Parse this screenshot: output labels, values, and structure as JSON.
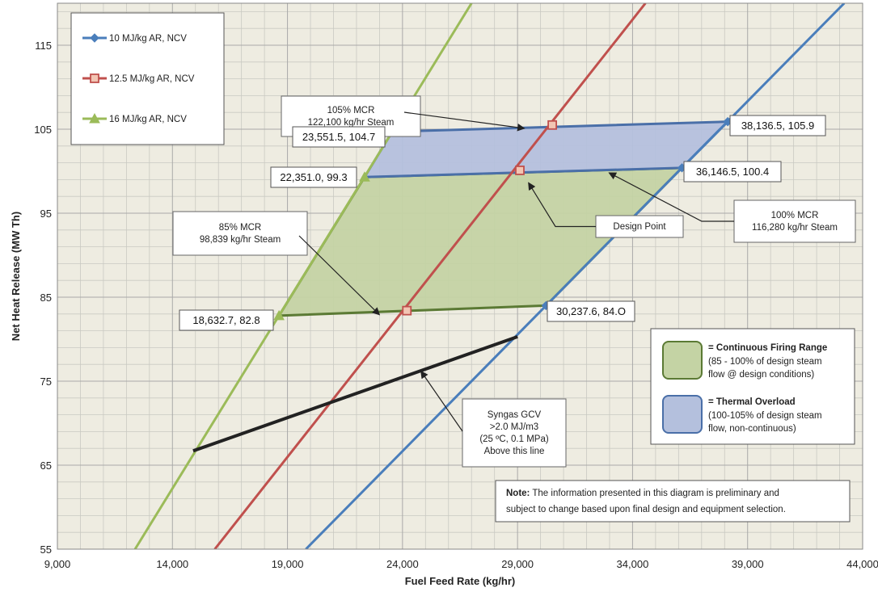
{
  "chart_data": {
    "type": "line",
    "xlabel": "Fuel Feed Rate (kg/hr)",
    "ylabel": "Net Heat Release (MW Th)",
    "xlim": [
      9000,
      44000
    ],
    "ylim": [
      55,
      120
    ],
    "x_ticks": [
      "9,000",
      "14,000",
      "19,000",
      "24,000",
      "29,000",
      "34,000",
      "39,000",
      "44,000"
    ],
    "y_ticks": [
      "55",
      "65",
      "75",
      "85",
      "95",
      "105",
      "115"
    ],
    "grid": true,
    "legend_position": "top-left",
    "series": [
      {
        "name": "10 MJ/kg AR, NCV",
        "color": "#4a7ebb",
        "marker": "diamond",
        "line": [
          [
            19800,
            55
          ],
          [
            43200,
            120
          ]
        ],
        "markers": [
          [
            30237.6,
            84.0
          ],
          [
            36146.5,
            100.4
          ],
          [
            38136.5,
            105.9
          ]
        ]
      },
      {
        "name": "12.5 MJ/kg AR, NCV",
        "color": "#c0504d",
        "marker": "square",
        "line": [
          [
            15840,
            55
          ],
          [
            34560,
            120
          ]
        ],
        "markers": [
          [
            24190,
            83.4
          ],
          [
            29100,
            100.1
          ],
          [
            30510,
            105.5
          ]
        ]
      },
      {
        "name": "16 MJ/kg AR, NCV",
        "color": "#9bbb59",
        "marker": "triangle",
        "line": [
          [
            12375,
            55
          ],
          [
            27000,
            120
          ]
        ],
        "markers": [
          [
            18632.7,
            82.8
          ],
          [
            22351.0,
            99.3
          ],
          [
            23551.5,
            104.7
          ]
        ]
      }
    ],
    "syngas_line": {
      "color": "#222222",
      "points": [
        [
          14900,
          66.7
        ],
        [
          29000,
          80.3
        ]
      ]
    },
    "regions": [
      {
        "name": "Continuous Firing Range",
        "color": "#c4d3a4",
        "edge": "#5b7a34",
        "polygon": [
          [
            18632.7,
            82.8
          ],
          [
            30237.6,
            84.0
          ],
          [
            36146.5,
            100.4
          ],
          [
            22351.0,
            99.3
          ]
        ]
      },
      {
        "name": "Thermal Overload",
        "color": "#b4c0dd",
        "edge": "#4a6fa8",
        "polygon": [
          [
            22351.0,
            99.3
          ],
          [
            36146.5,
            100.4
          ],
          [
            38136.5,
            105.9
          ],
          [
            23551.5,
            104.7
          ]
        ]
      }
    ],
    "point_labels": [
      {
        "text": "23,551.5, 104.7",
        "x": 23551.5,
        "y": 104.7
      },
      {
        "text": "38,136.5, 105.9",
        "x": 38136.5,
        "y": 105.9
      },
      {
        "text": "22,351.0, 99.3",
        "x": 22351.0,
        "y": 99.3
      },
      {
        "text": "36,146.5, 100.4",
        "x": 36146.5,
        "y": 100.4
      },
      {
        "text": "18,632.7, 82.8",
        "x": 18632.7,
        "y": 82.8
      },
      {
        "text": "30,237.6, 84.O",
        "x": 30237.6,
        "y": 84.0
      }
    ],
    "annotations": [
      {
        "lines": [
          "105% MCR",
          "122,100 kg/hr Steam"
        ],
        "arrow_to": [
          29300,
          105.1
        ]
      },
      {
        "lines": [
          "85% MCR",
          "98,839 kg/hr Steam"
        ],
        "arrow_to": [
          23000,
          82.9
        ]
      },
      {
        "lines": [
          "Design Point"
        ],
        "arrow_to": [
          29300,
          99.4
        ]
      },
      {
        "lines": [
          "100% MCR",
          "116,280 kg/hr Steam"
        ],
        "arrow_to": [
          32800,
          100.2
        ]
      },
      {
        "lines": [
          "Syngas GCV",
          ">2.0 MJ/m3",
          "(25 ºC, 0.1 MPa)",
          "Above this line"
        ],
        "arrow_to": [
          24800,
          76.2
        ]
      }
    ],
    "region_legend": [
      {
        "title": "= Continuous Firing Range",
        "lines": [
          "(85 - 100% of design steam",
          "flow @ design conditions)"
        ]
      },
      {
        "title": "= Thermal Overload",
        "lines": [
          "(100-105% of design steam",
          "flow, non-continuous)"
        ]
      }
    ],
    "note": {
      "bold": "Note:",
      "lines": [
        " The information presented in this diagram is preliminary and",
        "subject to change based upon final design and equipment selection."
      ]
    }
  }
}
